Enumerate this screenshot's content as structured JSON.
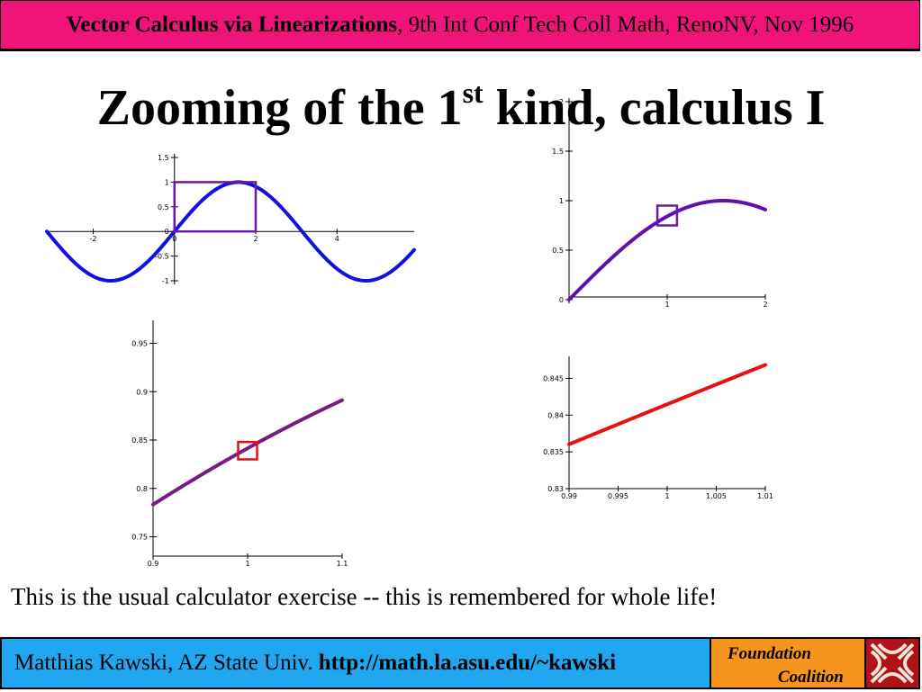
{
  "header": {
    "title_bold": "Vector Calculus via Linearizations",
    "title_rest": ", 9th Int Conf Tech Coll Math, RenoNV, Nov 1996"
  },
  "slide": {
    "title_main": "Zooming of the 1",
    "title_sup": "st",
    "title_end": " kind, calculus I"
  },
  "caption": "This is the usual calculator exercise -- this is remembered for whole life!",
  "footer": {
    "author": "Matthias Kawski, AZ State Univ.",
    "url": "http://math.la.asu.edu/~kawski",
    "logo_line1": "Foundation",
    "logo_line2": "Coalition",
    "logo_icon": "foundation-coalition-logo-icon",
    "colors": {
      "banner": "#f0147a",
      "bar": "#21a7ef",
      "logo_bg": "#f7941d",
      "logo_mark": "#b01217"
    }
  },
  "chart_data": [
    {
      "type": "line",
      "function": "sin(x)",
      "xlim": [
        -3.14159,
        5.9
      ],
      "ylim": [
        -1,
        1.5
      ],
      "x_ticks": [
        -2,
        0,
        2,
        4
      ],
      "y_ticks": [
        1.5,
        1,
        0.5,
        0,
        -0.5,
        -1
      ],
      "x_tick_labels": [
        "-2",
        "0",
        "2",
        "4"
      ],
      "y_tick_labels": [
        "1.5",
        "1",
        "0.5",
        "0",
        "-0.5",
        "-1"
      ],
      "color": "#1010e0",
      "zoom_box": {
        "x": [
          0,
          2
        ],
        "y": [
          0,
          1
        ],
        "color": "#6a1aa8"
      }
    },
    {
      "type": "line",
      "function": "sin(x)",
      "xlim": [
        0,
        2
      ],
      "ylim": [
        0,
        2
      ],
      "x_ticks": [
        1,
        2
      ],
      "y_ticks": [
        2,
        1.5,
        1,
        0.5,
        0
      ],
      "x_tick_labels": [
        "1",
        "2"
      ],
      "y_tick_labels": [
        "2",
        "1.5",
        "1",
        "0.5",
        "0"
      ],
      "color": "#6010b0",
      "zoom_box": {
        "x": [
          0.9,
          1.1
        ],
        "y": [
          0.75,
          0.95
        ],
        "color": "#6a1aa8"
      }
    },
    {
      "type": "line",
      "function": "sin(x)",
      "xlim": [
        0.9,
        1.1
      ],
      "ylim": [
        0.73,
        0.97
      ],
      "x_ticks": [
        0.9,
        1,
        1.1
      ],
      "y_ticks": [
        0.95,
        0.9,
        0.85,
        0.8,
        0.75
      ],
      "x_tick_labels": [
        "0.9",
        "1",
        "1.1"
      ],
      "y_tick_labels": [
        "0.95",
        "0.9",
        "0.85",
        "0.8",
        "0.75"
      ],
      "color": "#7a1a86",
      "zoom_box": {
        "x": [
          0.99,
          1.01
        ],
        "y": [
          0.83,
          0.848
        ],
        "color": "#e01010"
      }
    },
    {
      "type": "line",
      "function": "sin(x)",
      "xlim": [
        0.99,
        1.01
      ],
      "ylim": [
        0.83,
        0.8475
      ],
      "x_ticks": [
        0.99,
        0.995,
        1,
        1.005,
        1.01
      ],
      "y_ticks": [
        0.845,
        0.84,
        0.835,
        0.83
      ],
      "x_tick_labels": [
        "0.99",
        "0.995",
        "1",
        "1.005",
        "1.01"
      ],
      "y_tick_labels": [
        "0.845",
        "0.84",
        "0.835",
        "0.83"
      ],
      "color": "#e81010",
      "zoom_box": null
    }
  ]
}
